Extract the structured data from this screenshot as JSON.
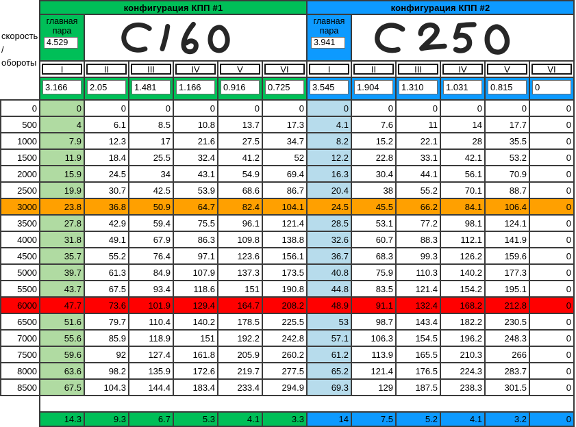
{
  "corner_label": "скорость\n/\nобороты",
  "colors": {
    "green": "#00bf58",
    "green_light": "#b0dba2",
    "blue": "#0d9aff",
    "blue_light": "#b7dcec",
    "orange": "#ffa000",
    "red": "#ff0000",
    "border": "#3b3b3b"
  },
  "configs": [
    {
      "title": "конфигурация КПП #1",
      "main_pair_label": "главная пара",
      "main_pair_value": "4.529",
      "annotation": "C160",
      "gears": [
        "I",
        "II",
        "III",
        "IV",
        "V",
        "VI"
      ],
      "ratios": [
        "3.166",
        "2.05",
        "1.481",
        "1.166",
        "0.916",
        "0.725"
      ],
      "summary": [
        "14.3",
        "9.3",
        "6.7",
        "5.3",
        "4.1",
        "3.3"
      ]
    },
    {
      "title": "конфигурация КПП #2",
      "main_pair_label": "главная пара",
      "main_pair_value": "3.941",
      "annotation": "C250",
      "gears": [
        "I",
        "II",
        "III",
        "IV",
        "V",
        "VI"
      ],
      "ratios": [
        "3.545",
        "1.904",
        "1.310",
        "1.031",
        "0.815",
        "0"
      ],
      "summary": [
        "14",
        "7.5",
        "5.2",
        "4.1",
        "3.2",
        "0"
      ]
    }
  ],
  "rows": [
    {
      "rpm": "0",
      "highlight": "",
      "c1": [
        "0",
        "0",
        "0",
        "0",
        "0",
        "0"
      ],
      "c2": [
        "0",
        "0",
        "0",
        "0",
        "0",
        "0"
      ]
    },
    {
      "rpm": "500",
      "highlight": "",
      "c1": [
        "4",
        "6.1",
        "8.5",
        "10.8",
        "13.7",
        "17.3"
      ],
      "c2": [
        "4.1",
        "7.6",
        "11",
        "14",
        "17.7",
        "0"
      ]
    },
    {
      "rpm": "1000",
      "highlight": "",
      "c1": [
        "7.9",
        "12.3",
        "17",
        "21.6",
        "27.5",
        "34.7"
      ],
      "c2": [
        "8.2",
        "15.2",
        "22.1",
        "28",
        "35.5",
        "0"
      ]
    },
    {
      "rpm": "1500",
      "highlight": "",
      "c1": [
        "11.9",
        "18.4",
        "25.5",
        "32.4",
        "41.2",
        "52"
      ],
      "c2": [
        "12.2",
        "22.8",
        "33.1",
        "42.1",
        "53.2",
        "0"
      ]
    },
    {
      "rpm": "2000",
      "highlight": "",
      "c1": [
        "15.9",
        "24.5",
        "34",
        "43.1",
        "54.9",
        "69.4"
      ],
      "c2": [
        "16.3",
        "30.4",
        "44.1",
        "56.1",
        "70.9",
        "0"
      ]
    },
    {
      "rpm": "2500",
      "highlight": "",
      "c1": [
        "19.9",
        "30.7",
        "42.5",
        "53.9",
        "68.6",
        "86.7"
      ],
      "c2": [
        "20.4",
        "38",
        "55.2",
        "70.1",
        "88.7",
        "0"
      ]
    },
    {
      "rpm": "3000",
      "highlight": "orange",
      "c1": [
        "23.8",
        "36.8",
        "50.9",
        "64.7",
        "82.4",
        "104.1"
      ],
      "c2": [
        "24.5",
        "45.5",
        "66.2",
        "84.1",
        "106.4",
        "0"
      ]
    },
    {
      "rpm": "3500",
      "highlight": "",
      "c1": [
        "27.8",
        "42.9",
        "59.4",
        "75.5",
        "96.1",
        "121.4"
      ],
      "c2": [
        "28.5",
        "53.1",
        "77.2",
        "98.1",
        "124.1",
        "0"
      ]
    },
    {
      "rpm": "4000",
      "highlight": "",
      "c1": [
        "31.8",
        "49.1",
        "67.9",
        "86.3",
        "109.8",
        "138.8"
      ],
      "c2": [
        "32.6",
        "60.7",
        "88.3",
        "112.1",
        "141.9",
        "0"
      ]
    },
    {
      "rpm": "4500",
      "highlight": "",
      "c1": [
        "35.7",
        "55.2",
        "76.4",
        "97.1",
        "123.6",
        "156.1"
      ],
      "c2": [
        "36.7",
        "68.3",
        "99.3",
        "126.2",
        "159.6",
        "0"
      ]
    },
    {
      "rpm": "5000",
      "highlight": "",
      "c1": [
        "39.7",
        "61.3",
        "84.9",
        "107.9",
        "137.3",
        "173.5"
      ],
      "c2": [
        "40.8",
        "75.9",
        "110.3",
        "140.2",
        "177.3",
        "0"
      ]
    },
    {
      "rpm": "5500",
      "highlight": "",
      "c1": [
        "43.7",
        "67.5",
        "93.4",
        "118.6",
        "151",
        "190.8"
      ],
      "c2": [
        "44.8",
        "83.5",
        "121.4",
        "154.2",
        "195.1",
        "0"
      ]
    },
    {
      "rpm": "6000",
      "highlight": "red",
      "c1": [
        "47.7",
        "73.6",
        "101.9",
        "129.4",
        "164.7",
        "208.2"
      ],
      "c2": [
        "48.9",
        "91.1",
        "132.4",
        "168.2",
        "212.8",
        "0"
      ]
    },
    {
      "rpm": "6500",
      "highlight": "",
      "c1": [
        "51.6",
        "79.7",
        "110.4",
        "140.2",
        "178.5",
        "225.5"
      ],
      "c2": [
        "53",
        "98.7",
        "143.4",
        "182.2",
        "230.5",
        "0"
      ]
    },
    {
      "rpm": "7000",
      "highlight": "",
      "c1": [
        "55.6",
        "85.9",
        "118.9",
        "151",
        "192.2",
        "242.8"
      ],
      "c2": [
        "57.1",
        "106.3",
        "154.5",
        "196.2",
        "248.3",
        "0"
      ]
    },
    {
      "rpm": "7500",
      "highlight": "",
      "c1": [
        "59.6",
        "92",
        "127.4",
        "161.8",
        "205.9",
        "260.2"
      ],
      "c2": [
        "61.2",
        "113.9",
        "165.5",
        "210.3",
        "266",
        "0"
      ]
    },
    {
      "rpm": "8000",
      "highlight": "",
      "c1": [
        "63.6",
        "98.2",
        "135.9",
        "172.6",
        "219.7",
        "277.5"
      ],
      "c2": [
        "65.2",
        "121.4",
        "176.5",
        "224.3",
        "283.7",
        "0"
      ]
    },
    {
      "rpm": "8500",
      "highlight": "",
      "c1": [
        "67.5",
        "104.3",
        "144.4",
        "183.4",
        "233.4",
        "294.9"
      ],
      "c2": [
        "69.3",
        "129",
        "187.5",
        "238.3",
        "301.5",
        "0"
      ]
    }
  ]
}
